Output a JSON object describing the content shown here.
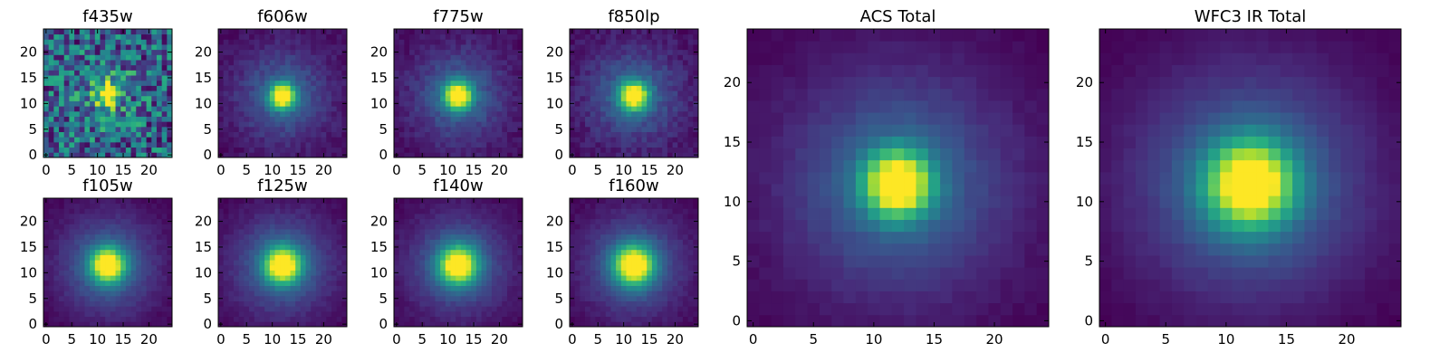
{
  "chart_data": {
    "type": "heatmap",
    "colormap": "viridis",
    "grid": false,
    "image_size": [
      25,
      25
    ],
    "panels": [
      {
        "id": "f435w",
        "title": "f435w",
        "xticks": [
          "0",
          "5",
          "10",
          "15",
          "20"
        ],
        "yticks": [
          "0",
          "5",
          "10",
          "15",
          "20"
        ],
        "xlim": [
          0,
          24
        ],
        "ylim": [
          0,
          24
        ],
        "center": [
          12,
          11.8
        ],
        "sigma": 1.6,
        "halo_sigma": 5.0,
        "halo_amp": 0.18,
        "noise": 0.38
      },
      {
        "id": "f606w",
        "title": "f606w",
        "xticks": [
          "0",
          "5",
          "10",
          "15",
          "20"
        ],
        "yticks": [
          "0",
          "5",
          "10",
          "15",
          "20"
        ],
        "xlim": [
          0,
          24
        ],
        "ylim": [
          0,
          24
        ],
        "center": [
          12,
          11.5
        ],
        "sigma": 1.7,
        "halo_sigma": 6.5,
        "halo_amp": 0.32,
        "noise": 0.05
      },
      {
        "id": "f775w",
        "title": "f775w",
        "xticks": [
          "0",
          "5",
          "10",
          "15",
          "20"
        ],
        "yticks": [
          "0",
          "5",
          "10",
          "15",
          "20"
        ],
        "xlim": [
          0,
          24
        ],
        "ylim": [
          0,
          24
        ],
        "center": [
          12,
          11.5
        ],
        "sigma": 1.8,
        "halo_sigma": 6.5,
        "halo_amp": 0.33,
        "noise": 0.05
      },
      {
        "id": "f850lp",
        "title": "f850lp",
        "xticks": [
          "0",
          "5",
          "10",
          "15",
          "20"
        ],
        "yticks": [
          "0",
          "5",
          "10",
          "15",
          "20"
        ],
        "xlim": [
          0,
          24
        ],
        "ylim": [
          0,
          24
        ],
        "center": [
          12,
          11.5
        ],
        "sigma": 1.9,
        "halo_sigma": 6.5,
        "halo_amp": 0.34,
        "noise": 0.06
      },
      {
        "id": "f105w",
        "title": "f105w",
        "xticks": [
          "0",
          "5",
          "10",
          "15",
          "20"
        ],
        "yticks": [
          "0",
          "5",
          "10",
          "15",
          "20"
        ],
        "xlim": [
          0,
          24
        ],
        "ylim": [
          0,
          24
        ],
        "center": [
          12,
          11.5
        ],
        "sigma": 2.3,
        "halo_sigma": 7.0,
        "halo_amp": 0.38,
        "noise": 0.03
      },
      {
        "id": "f125w",
        "title": "f125w",
        "xticks": [
          "0",
          "5",
          "10",
          "15",
          "20"
        ],
        "yticks": [
          "0",
          "5",
          "10",
          "15",
          "20"
        ],
        "xlim": [
          0,
          24
        ],
        "ylim": [
          0,
          24
        ],
        "center": [
          12,
          11.5
        ],
        "sigma": 2.4,
        "halo_sigma": 7.0,
        "halo_amp": 0.38,
        "noise": 0.03
      },
      {
        "id": "f140w",
        "title": "f140w",
        "xticks": [
          "0",
          "5",
          "10",
          "15",
          "20"
        ],
        "yticks": [
          "0",
          "5",
          "10",
          "15",
          "20"
        ],
        "xlim": [
          0,
          24
        ],
        "ylim": [
          0,
          24
        ],
        "center": [
          12,
          11.5
        ],
        "sigma": 2.5,
        "halo_sigma": 7.0,
        "halo_amp": 0.38,
        "noise": 0.03
      },
      {
        "id": "f160w",
        "title": "f160w",
        "xticks": [
          "0",
          "5",
          "10",
          "15",
          "20"
        ],
        "yticks": [
          "0",
          "5",
          "10",
          "15",
          "20"
        ],
        "xlim": [
          0,
          24
        ],
        "ylim": [
          0,
          24
        ],
        "center": [
          12,
          11.5
        ],
        "sigma": 2.6,
        "halo_sigma": 7.0,
        "halo_amp": 0.38,
        "noise": 0.03
      },
      {
        "id": "acs-total",
        "title": "ACS Total",
        "xticks": [
          "0",
          "5",
          "10",
          "15",
          "20"
        ],
        "yticks": [
          "0",
          "5",
          "10",
          "15",
          "20"
        ],
        "xlim": [
          0,
          24
        ],
        "ylim": [
          0,
          24
        ],
        "center": [
          12,
          11.5
        ],
        "sigma": 1.9,
        "halo_sigma": 6.8,
        "halo_amp": 0.36,
        "noise": 0.02
      },
      {
        "id": "wfc3-ir-total",
        "title": "WFC3 IR Total",
        "xticks": [
          "0",
          "5",
          "10",
          "15",
          "20"
        ],
        "yticks": [
          "0",
          "5",
          "10",
          "15",
          "20"
        ],
        "xlim": [
          0,
          24
        ],
        "ylim": [
          0,
          24
        ],
        "center": [
          12,
          11.5
        ],
        "sigma": 2.5,
        "halo_sigma": 7.2,
        "halo_amp": 0.4,
        "noise": 0.015
      }
    ]
  }
}
